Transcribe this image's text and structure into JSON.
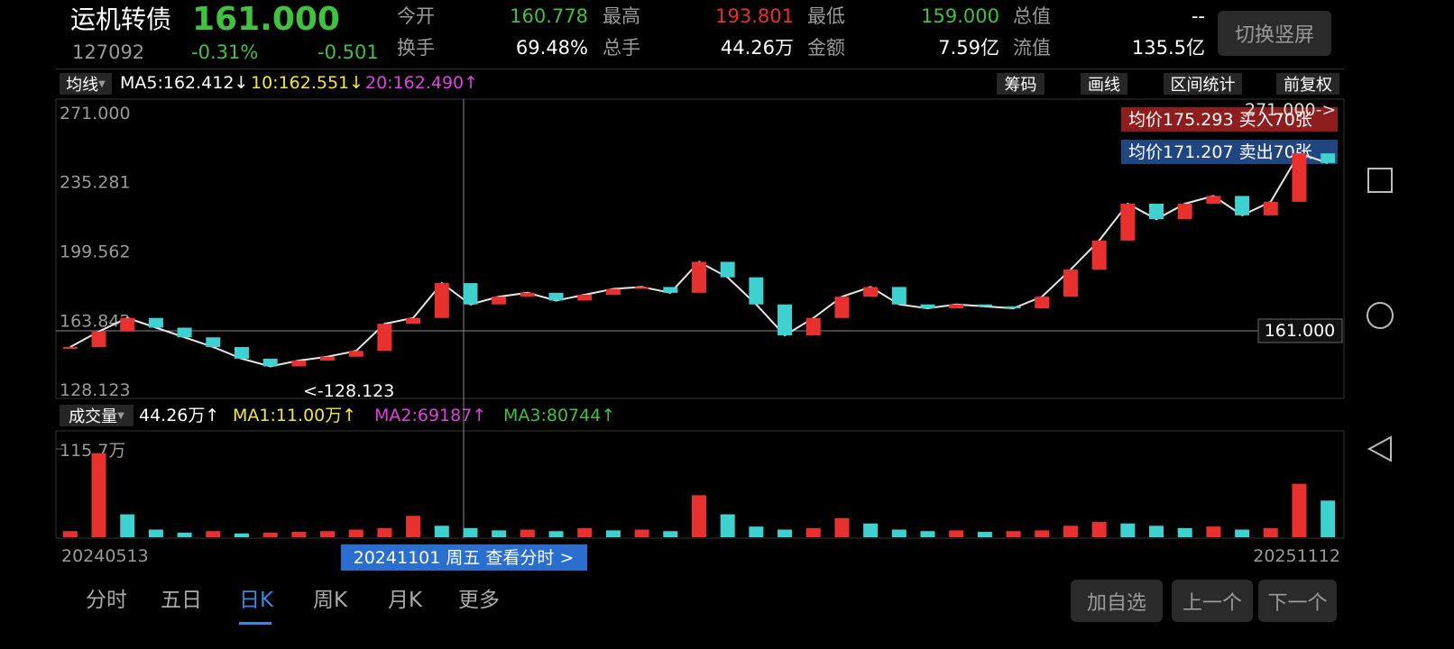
{
  "header": {
    "name": "运机转债",
    "price": "161.000",
    "code": "127092",
    "change_pct": "-0.31%",
    "change": "-0.501",
    "stats": [
      {
        "label": "今开",
        "value": "160.778",
        "tone": "down"
      },
      {
        "label": "最高",
        "value": "193.801",
        "tone": "up"
      },
      {
        "label": "最低",
        "value": "159.000",
        "tone": "down"
      },
      {
        "label": "总值",
        "value": "--",
        "tone": "flat"
      },
      {
        "label": "换手",
        "value": "69.48%",
        "tone": "flat"
      },
      {
        "label": "总手",
        "value": "44.26万",
        "tone": "flat"
      },
      {
        "label": "金额",
        "value": "7.59亿",
        "tone": "flat"
      },
      {
        "label": "流值",
        "value": "135.5亿",
        "tone": "flat"
      }
    ],
    "button": "切换竖屏"
  },
  "ma_bar": {
    "selector": "均线",
    "items": [
      "MA5:162.412↓",
      "10:162.551↓",
      "20:162.490↑"
    ],
    "tools": [
      "筹码",
      "画线",
      "区间统计",
      "前复权"
    ]
  },
  "price_chart": {
    "ylim": [
      128.123,
      271
    ],
    "yticks": [
      {
        "value": 271,
        "label": "271.000"
      },
      {
        "value": 235.281,
        "label": "235.281"
      },
      {
        "value": 199.562,
        "label": "199.562"
      },
      {
        "value": 163.842,
        "label": "163.842"
      },
      {
        "value": 128.123,
        "label": "128.123"
      }
    ],
    "closes": [
      150,
      158,
      165,
      160,
      155,
      150,
      144,
      140,
      143,
      145,
      148,
      162,
      165,
      183,
      172,
      176,
      178,
      174,
      177,
      180,
      181,
      178,
      194,
      186,
      172,
      156,
      165,
      176,
      181,
      172,
      170,
      172,
      171,
      170,
      176,
      190,
      205,
      224,
      216,
      224,
      228,
      218,
      225,
      250,
      245
    ],
    "annotations": {
      "buy": "均价175.293  买入70张",
      "sell": "均价171.207  卖出70张",
      "high": "271.000->",
      "current": "161.000",
      "low": "<-128.123"
    }
  },
  "volume_bar": {
    "selector": "成交量",
    "items": [
      "44.26万↑",
      "MA1:11.00万↑",
      "MA2:69187↑",
      "MA3:80744↑"
    ],
    "axis_max": "115.7万",
    "ymax": 115.7,
    "volumes": [
      8,
      110,
      30,
      10,
      6,
      8,
      5,
      6,
      7,
      8,
      10,
      12,
      28,
      15,
      12,
      9,
      10,
      8,
      12,
      9,
      10,
      8,
      55,
      30,
      14,
      10,
      12,
      25,
      18,
      10,
      8,
      9,
      7,
      8,
      9,
      15,
      20,
      18,
      15,
      12,
      14,
      10,
      12,
      70,
      48
    ]
  },
  "dates": {
    "start": "20240513",
    "end": "20251112",
    "cursor": "20241101 周五 查看分时 >"
  },
  "tabs": {
    "items": [
      "分时",
      "五日",
      "日K",
      "周K",
      "月K",
      "更多"
    ],
    "active": 2
  },
  "buttons": [
    "加自选",
    "上一个",
    "下一个"
  ]
}
